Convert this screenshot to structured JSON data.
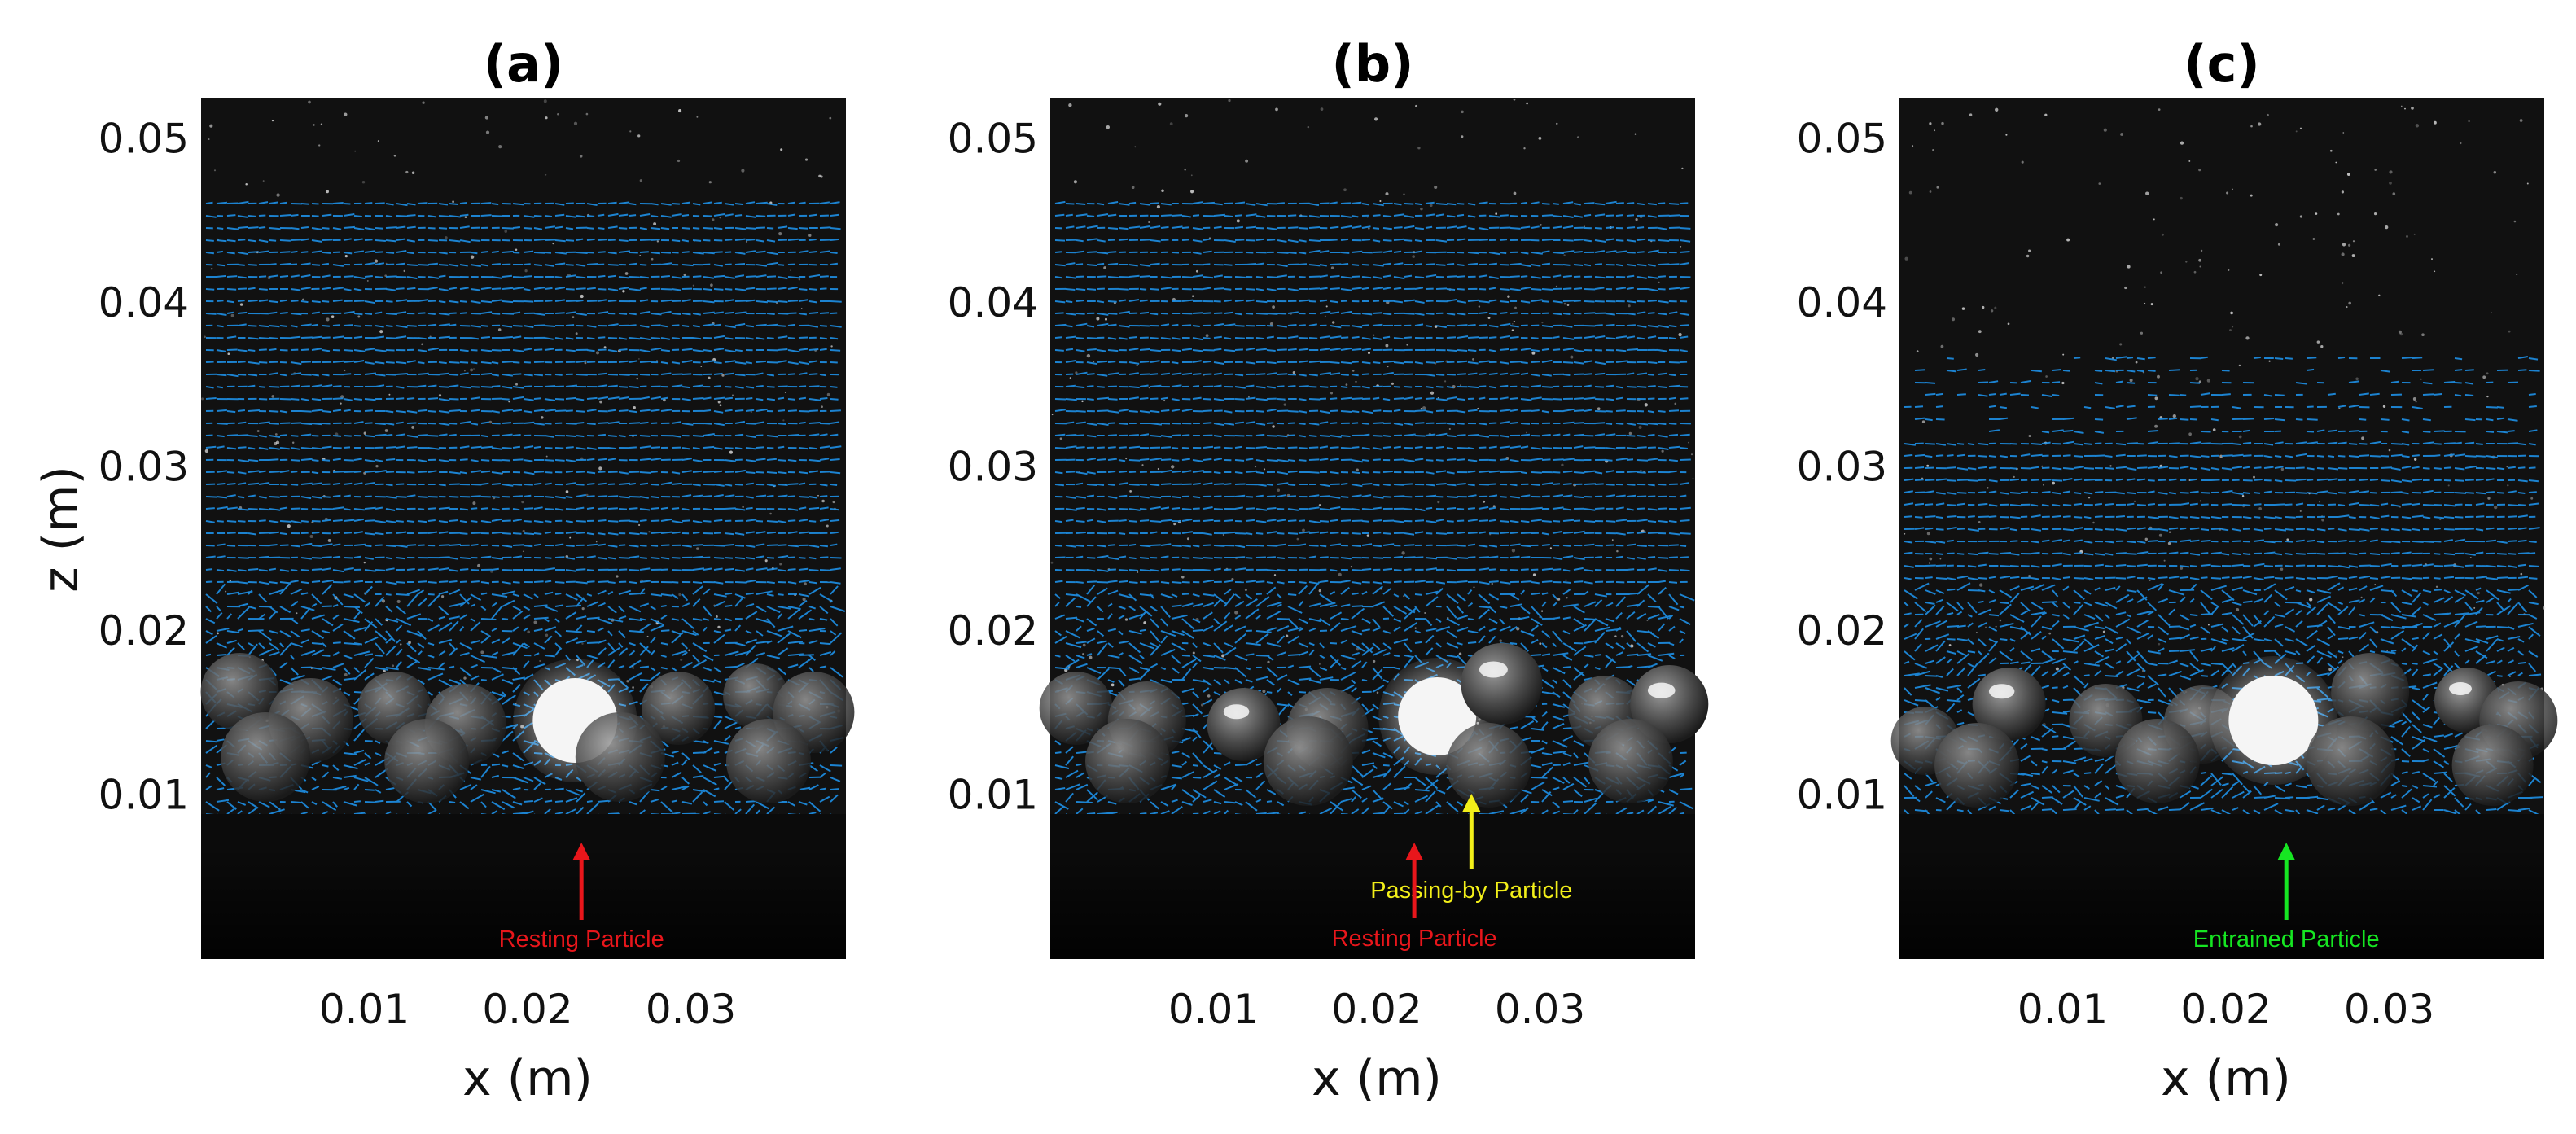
{
  "figure": {
    "colors": {
      "vector": "#1e90e6",
      "resting": "#e8161b",
      "passing": "#f2ef19",
      "entrained": "#16e622",
      "background": "#111111"
    },
    "xlabel": "x (m)",
    "ylabel": "z (m)",
    "xticks": [
      "0.01",
      "0.02",
      "0.03"
    ],
    "yticks": [
      "0.01",
      "0.02",
      "0.03",
      "0.04",
      "0.05"
    ]
  },
  "panels": [
    {
      "label": "(a)",
      "annotations": [
        {
          "text": "Resting Particle",
          "color": "#e8161b",
          "x": 0.0233
        }
      ]
    },
    {
      "label": "(b)",
      "annotations": [
        {
          "text": "Passing-by Particle",
          "color": "#f2ef19",
          "x": 0.0258
        },
        {
          "text": "Resting Particle",
          "color": "#e8161b",
          "x": 0.0223
        }
      ]
    },
    {
      "label": "(c)",
      "annotations": [
        {
          "text": "Entrained Particle",
          "color": "#16e622",
          "x": 0.0237
        }
      ]
    }
  ]
}
